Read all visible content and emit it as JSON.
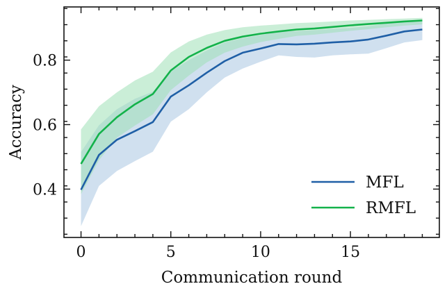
{
  "chart_data": {
    "type": "line",
    "title": "",
    "xlabel": "Communication round",
    "ylabel": "Accuracy",
    "xlim": [
      -0.95,
      19.95
    ],
    "ylim": [
      0.25,
      0.965
    ],
    "xticks": [
      0,
      5,
      10,
      15
    ],
    "xtick_labels": [
      "0",
      "5",
      "10",
      "15"
    ],
    "yticks": [
      0.4,
      0.6,
      0.8
    ],
    "ytick_labels": [
      "0.4",
      "0.6",
      "0.8"
    ],
    "legend_position": "lower-right",
    "x": [
      0,
      1,
      2,
      3,
      4,
      5,
      6,
      7,
      8,
      9,
      10,
      11,
      12,
      13,
      14,
      15,
      16,
      17,
      18,
      19
    ],
    "series": [
      {
        "name": "MFL",
        "color": "#1f5fa6",
        "band_color": "#a9c6e2",
        "values": [
          0.398,
          0.506,
          0.553,
          0.58,
          0.608,
          0.687,
          0.722,
          0.761,
          0.797,
          0.823,
          0.836,
          0.85,
          0.849,
          0.851,
          0.855,
          0.858,
          0.864,
          0.876,
          0.889,
          0.895
        ],
        "lower": [
          0.285,
          0.41,
          0.456,
          0.487,
          0.516,
          0.609,
          0.648,
          0.7,
          0.746,
          0.774,
          0.795,
          0.815,
          0.81,
          0.808,
          0.815,
          0.818,
          0.82,
          0.837,
          0.855,
          0.862
        ],
        "upper": [
          0.515,
          0.598,
          0.648,
          0.68,
          0.702,
          0.765,
          0.8,
          0.83,
          0.855,
          0.868,
          0.878,
          0.888,
          0.89,
          0.893,
          0.897,
          0.9,
          0.905,
          0.914,
          0.918,
          0.92
        ]
      },
      {
        "name": "RMFL",
        "color": "#13b24a",
        "band_color": "#9fe0b6",
        "values": [
          0.478,
          0.571,
          0.623,
          0.663,
          0.695,
          0.768,
          0.81,
          0.838,
          0.86,
          0.873,
          0.882,
          0.889,
          0.895,
          0.898,
          0.903,
          0.908,
          0.912,
          0.916,
          0.92,
          0.923
        ],
        "lower": [
          0.384,
          0.49,
          0.56,
          0.597,
          0.632,
          0.707,
          0.752,
          0.793,
          0.823,
          0.842,
          0.856,
          0.866,
          0.875,
          0.879,
          0.885,
          0.891,
          0.896,
          0.902,
          0.907,
          0.911
        ],
        "upper": [
          0.585,
          0.657,
          0.7,
          0.737,
          0.764,
          0.824,
          0.858,
          0.879,
          0.893,
          0.902,
          0.907,
          0.911,
          0.915,
          0.917,
          0.92,
          0.923,
          0.925,
          0.927,
          0.929,
          0.931
        ]
      }
    ]
  }
}
